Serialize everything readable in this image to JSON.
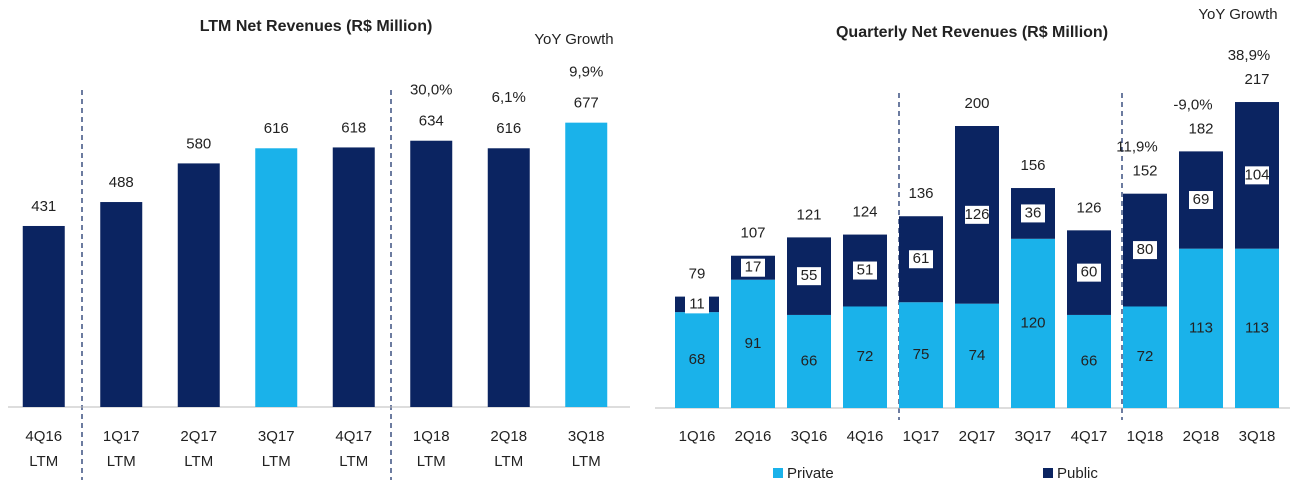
{
  "chart_data": [
    {
      "type": "bar",
      "title": "LTM Net Revenues (R$ Million)",
      "growth_title": "YoY Growth",
      "categories": [
        [
          "4Q16",
          "LTM"
        ],
        [
          "1Q17",
          "LTM"
        ],
        [
          "2Q17",
          "LTM"
        ],
        [
          "3Q17",
          "LTM"
        ],
        [
          "4Q17",
          "LTM"
        ],
        [
          "1Q18",
          "LTM"
        ],
        [
          "2Q18",
          "LTM"
        ],
        [
          "3Q18",
          "LTM"
        ]
      ],
      "values": [
        431,
        488,
        580,
        616,
        618,
        634,
        616,
        677
      ],
      "colors": [
        "#0b2461",
        "#0b2461",
        "#0b2461",
        "#1ab2ea",
        "#0b2461",
        "#0b2461",
        "#0b2461",
        "#1ab2ea"
      ],
      "growth_labels": [
        null,
        null,
        null,
        null,
        null,
        "30,0%",
        "6,1%",
        "9,9%"
      ],
      "growth_color": "#1ab2ea",
      "ylim": [
        0,
        800
      ]
    },
    {
      "type": "stacked_bar",
      "title": "Quarterly Net Revenues (R$ Million)",
      "growth_title": "YoY Growth",
      "categories": [
        "1Q16",
        "2Q16",
        "3Q16",
        "4Q16",
        "1Q17",
        "2Q17",
        "3Q17",
        "4Q17",
        "1Q18",
        "2Q18",
        "3Q18"
      ],
      "series": [
        {
          "name": "Private",
          "color": "#1ab2ea",
          "values": [
            68,
            91,
            66,
            72,
            75,
            74,
            120,
            66,
            72,
            113,
            113
          ]
        },
        {
          "name": "Public",
          "color": "#0b2461",
          "values": [
            11,
            17,
            55,
            51,
            61,
            126,
            36,
            60,
            80,
            69,
            104
          ]
        }
      ],
      "totals": [
        79,
        107,
        121,
        124,
        136,
        200,
        156,
        126,
        152,
        182,
        217
      ],
      "growth_labels": [
        null,
        null,
        null,
        null,
        null,
        null,
        null,
        null,
        "11,9%",
        "-9,0%",
        "38,9%"
      ],
      "growth_color": "#1ab2ea",
      "ylim": [
        0,
        250
      ],
      "legend": "bottom"
    }
  ]
}
